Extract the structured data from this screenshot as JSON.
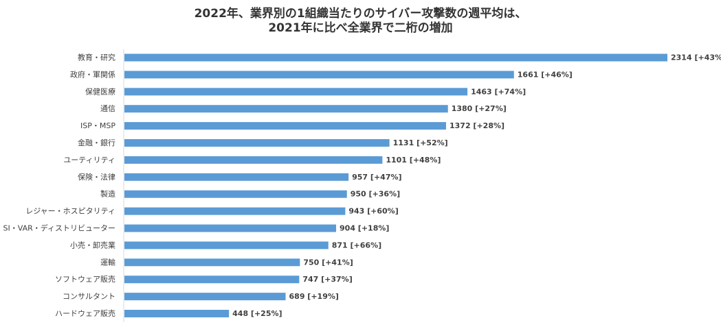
{
  "chart_data": {
    "type": "bar",
    "orientation": "horizontal",
    "title_line1": "2022年、業界別の1組織当たりのサイバー攻撃数の週平均は、",
    "title_line2": "2021年に比べ全業界で二桁の増加",
    "categories": [
      "教育・研究",
      "政府・軍関係",
      "保健医療",
      "通信",
      "ISP・MSP",
      "金融・銀行",
      "ユーティリティ",
      "保険・法律",
      "製造",
      "レジャー・ホスピタリティ",
      "SI・VAR・ディストリビューター",
      "小売・卸売業",
      "運輸",
      "ソフトウェア販売",
      "コンサルタント",
      "ハードウェア販売"
    ],
    "values": [
      2314,
      1661,
      1463,
      1380,
      1372,
      1131,
      1101,
      957,
      950,
      943,
      904,
      871,
      750,
      747,
      689,
      448
    ],
    "change_labels": [
      "[+43%]",
      "[+46%]",
      "[+74%]",
      "[+27%]",
      "[+28%]",
      "[+52%]",
      "[+48%]",
      "[+47%]",
      "[+36%]",
      "[+60%]",
      "[+18%]",
      "[+66%]",
      "[+41%]",
      "[+37%]",
      "[+19%]",
      "[+25%]"
    ],
    "xlim": [
      0,
      2314
    ],
    "grid": false,
    "bar_color": "#5b9bd5",
    "axis_color": "#d9d9d9",
    "text_color": "#404040"
  }
}
